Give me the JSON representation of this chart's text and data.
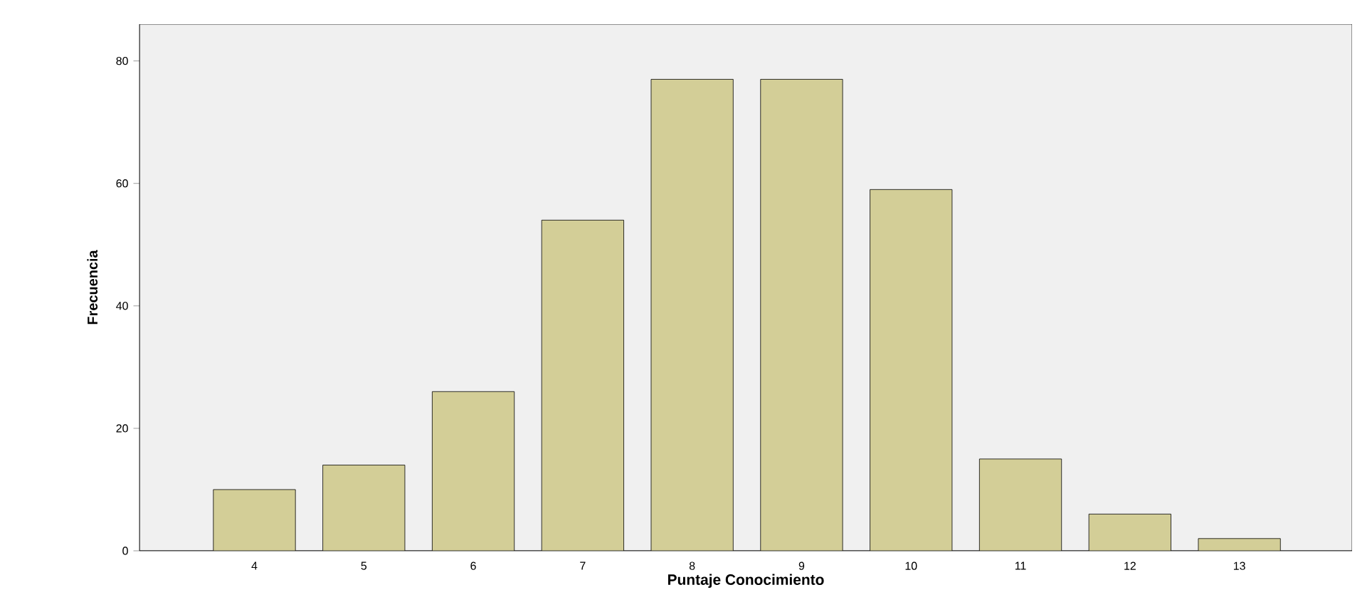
{
  "chart_data": {
    "type": "bar",
    "xlabel": "Puntaje Conocimiento",
    "ylabel": "Frecuencia",
    "categories": [
      "4",
      "5",
      "6",
      "7",
      "8",
      "9",
      "10",
      "11",
      "12",
      "13"
    ],
    "values": [
      10,
      14,
      26,
      54,
      77,
      77,
      59,
      15,
      6,
      2
    ],
    "color": "#d3ce97",
    "ylim": [
      0,
      86
    ],
    "yticks": [
      0,
      20,
      40,
      60,
      80
    ],
    "grid": false
  }
}
